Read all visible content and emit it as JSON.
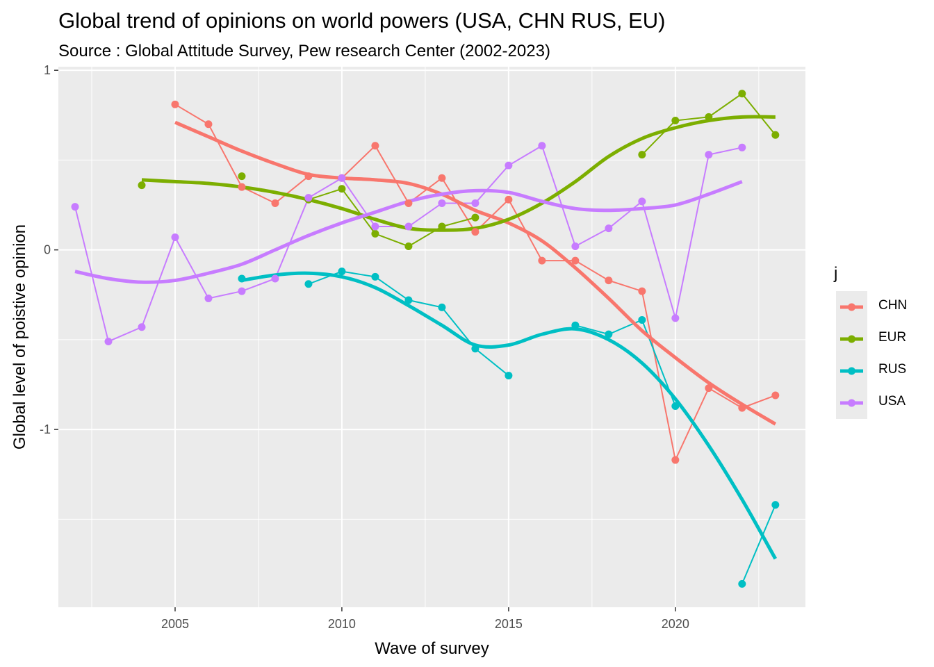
{
  "chart_data": {
    "type": "line",
    "title": "Global trend of opinions on world powers (USA, CHN  RUS, EU)",
    "subtitle": "Source : Global Attitude Survey, Pew research Center (2002-2023)",
    "xlabel": "Wave of survey",
    "ylabel": "Global level of poistive opinion",
    "xlim": [
      2001.5,
      2023.9
    ],
    "ylim": [
      -1.99,
      1.02
    ],
    "x_ticks": [
      2005,
      2010,
      2015,
      2020
    ],
    "x_tick_labels": [
      "2005",
      "2010",
      "2015",
      "2020"
    ],
    "y_ticks": [
      1,
      0,
      -1
    ],
    "y_tick_labels": [
      "1",
      "0",
      "-1"
    ],
    "legend_title": "j",
    "legend_position": "right",
    "series": [
      {
        "name": "CHN",
        "color": "#F8766D",
        "points": [
          [
            2005,
            0.81
          ],
          [
            2006,
            0.7
          ],
          [
            2007,
            0.35
          ],
          [
            2008,
            0.26
          ],
          [
            2009,
            0.41
          ],
          [
            2010,
            0.4
          ],
          [
            2011,
            0.58
          ],
          [
            2012,
            0.26
          ],
          [
            2013,
            0.4
          ],
          [
            2014,
            0.1
          ],
          [
            2015,
            0.28
          ],
          [
            2016,
            -0.06
          ],
          [
            2017,
            -0.06
          ],
          [
            2018,
            -0.17
          ],
          [
            2019,
            -0.23
          ],
          [
            2020,
            -1.17
          ],
          [
            2021,
            -0.77
          ],
          [
            2022,
            -0.88
          ],
          [
            2023,
            -0.81
          ]
        ],
        "smooth": [
          [
            2005,
            0.71
          ],
          [
            2006,
            0.63
          ],
          [
            2007,
            0.55
          ],
          [
            2008,
            0.48
          ],
          [
            2009,
            0.42
          ],
          [
            2010,
            0.4
          ],
          [
            2011,
            0.39
          ],
          [
            2012,
            0.37
          ],
          [
            2013,
            0.31
          ],
          [
            2014,
            0.22
          ],
          [
            2015,
            0.15
          ],
          [
            2016,
            0.05
          ],
          [
            2017,
            -0.1
          ],
          [
            2018,
            -0.27
          ],
          [
            2019,
            -0.45
          ],
          [
            2020,
            -0.6
          ],
          [
            2021,
            -0.74
          ],
          [
            2022,
            -0.86
          ],
          [
            2023,
            -0.97
          ]
        ]
      },
      {
        "name": "EUR",
        "color": "#7CAE00",
        "points": [
          [
            2004,
            0.36
          ],
          [
            2007,
            0.41
          ],
          [
            2009,
            0.28
          ],
          [
            2010,
            0.34
          ],
          [
            2011,
            0.09
          ],
          [
            2012,
            0.02
          ],
          [
            2013,
            0.13
          ],
          [
            2014,
            0.18
          ],
          [
            2019,
            0.53
          ],
          [
            2020,
            0.72
          ],
          [
            2021,
            0.74
          ],
          [
            2022,
            0.87
          ],
          [
            2023,
            0.64
          ]
        ],
        "smooth": [
          [
            2004,
            0.39
          ],
          [
            2005,
            0.38
          ],
          [
            2006,
            0.37
          ],
          [
            2007,
            0.35
          ],
          [
            2008,
            0.32
          ],
          [
            2009,
            0.28
          ],
          [
            2010,
            0.23
          ],
          [
            2011,
            0.17
          ],
          [
            2012,
            0.12
          ],
          [
            2013,
            0.11
          ],
          [
            2014,
            0.12
          ],
          [
            2015,
            0.17
          ],
          [
            2016,
            0.26
          ],
          [
            2017,
            0.38
          ],
          [
            2018,
            0.52
          ],
          [
            2019,
            0.62
          ],
          [
            2020,
            0.68
          ],
          [
            2021,
            0.72
          ],
          [
            2022,
            0.74
          ],
          [
            2023,
            0.74
          ]
        ]
      },
      {
        "name": "RUS",
        "color": "#00BFC4",
        "points": [
          [
            2007,
            -0.16
          ],
          [
            2009,
            -0.19
          ],
          [
            2010,
            -0.12
          ],
          [
            2011,
            -0.15
          ],
          [
            2012,
            -0.28
          ],
          [
            2013,
            -0.32
          ],
          [
            2014,
            -0.55
          ],
          [
            2015,
            -0.7
          ],
          [
            2017,
            -0.42
          ],
          [
            2018,
            -0.47
          ],
          [
            2019,
            -0.39
          ],
          [
            2020,
            -0.87
          ],
          [
            2022,
            -1.86
          ],
          [
            2023,
            -1.42
          ]
        ],
        "smooth": [
          [
            2007,
            -0.17
          ],
          [
            2008,
            -0.14
          ],
          [
            2009,
            -0.13
          ],
          [
            2010,
            -0.15
          ],
          [
            2011,
            -0.21
          ],
          [
            2012,
            -0.31
          ],
          [
            2013,
            -0.42
          ],
          [
            2014,
            -0.53
          ],
          [
            2015,
            -0.53
          ],
          [
            2016,
            -0.47
          ],
          [
            2017,
            -0.44
          ],
          [
            2018,
            -0.5
          ],
          [
            2019,
            -0.63
          ],
          [
            2020,
            -0.83
          ],
          [
            2021,
            -1.09
          ],
          [
            2022,
            -1.39
          ],
          [
            2023,
            -1.72
          ]
        ]
      },
      {
        "name": "USA",
        "color": "#C77CFF",
        "points": [
          [
            2002,
            0.24
          ],
          [
            2003,
            -0.51
          ],
          [
            2004,
            -0.43
          ],
          [
            2005,
            0.07
          ],
          [
            2006,
            -0.27
          ],
          [
            2007,
            -0.23
          ],
          [
            2008,
            -0.16
          ],
          [
            2009,
            0.29
          ],
          [
            2010,
            0.4
          ],
          [
            2011,
            0.13
          ],
          [
            2012,
            0.13
          ],
          [
            2013,
            0.26
          ],
          [
            2014,
            0.26
          ],
          [
            2015,
            0.47
          ],
          [
            2016,
            0.58
          ],
          [
            2017,
            0.02
          ],
          [
            2018,
            0.12
          ],
          [
            2019,
            0.27
          ],
          [
            2020,
            -0.38
          ],
          [
            2021,
            0.53
          ],
          [
            2022,
            0.57
          ]
        ],
        "smooth": [
          [
            2002,
            -0.12
          ],
          [
            2003,
            -0.16
          ],
          [
            2004,
            -0.18
          ],
          [
            2005,
            -0.17
          ],
          [
            2006,
            -0.13
          ],
          [
            2007,
            -0.08
          ],
          [
            2008,
            0.0
          ],
          [
            2009,
            0.08
          ],
          [
            2010,
            0.15
          ],
          [
            2011,
            0.21
          ],
          [
            2012,
            0.27
          ],
          [
            2013,
            0.31
          ],
          [
            2014,
            0.33
          ],
          [
            2015,
            0.32
          ],
          [
            2016,
            0.27
          ],
          [
            2017,
            0.23
          ],
          [
            2018,
            0.22
          ],
          [
            2019,
            0.23
          ],
          [
            2020,
            0.25
          ],
          [
            2021,
            0.31
          ],
          [
            2022,
            0.38
          ]
        ]
      }
    ]
  }
}
